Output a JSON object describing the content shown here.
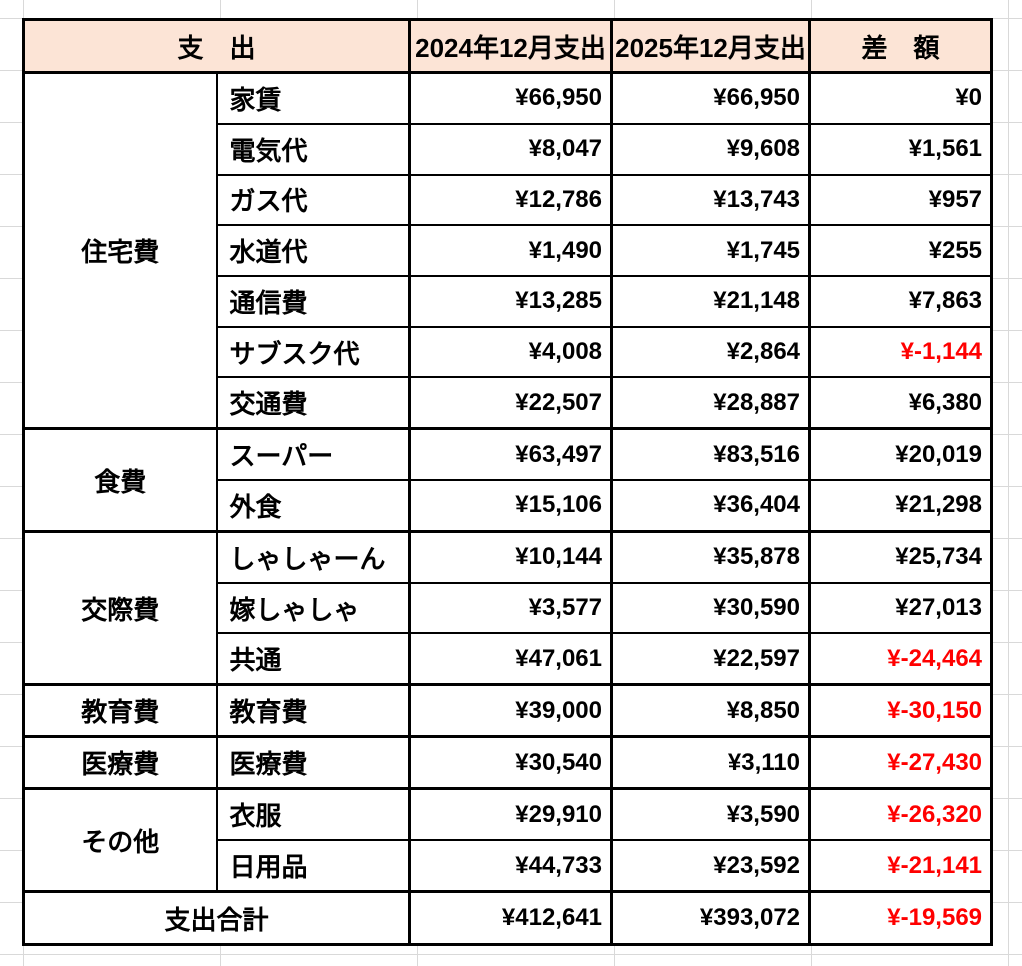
{
  "table": {
    "header": {
      "expense": "支　出",
      "y2024": "2024年12月支出",
      "y2025": "2025年12月支出",
      "diff": "差　額"
    },
    "groups": [
      {
        "category": "住宅費",
        "rows": [
          {
            "item": "家賃",
            "y2024": "¥66,950",
            "y2025": "¥66,950",
            "diff": "¥0",
            "negative": false
          },
          {
            "item": "電気代",
            "y2024": "¥8,047",
            "y2025": "¥9,608",
            "diff": "¥1,561",
            "negative": false
          },
          {
            "item": "ガス代",
            "y2024": "¥12,786",
            "y2025": "¥13,743",
            "diff": "¥957",
            "negative": false
          },
          {
            "item": "水道代",
            "y2024": "¥1,490",
            "y2025": "¥1,745",
            "diff": "¥255",
            "negative": false
          },
          {
            "item": "通信費",
            "y2024": "¥13,285",
            "y2025": "¥21,148",
            "diff": "¥7,863",
            "negative": false
          },
          {
            "item": "サブスク代",
            "y2024": "¥4,008",
            "y2025": "¥2,864",
            "diff": "¥-1,144",
            "negative": true
          },
          {
            "item": "交通費",
            "y2024": "¥22,507",
            "y2025": "¥28,887",
            "diff": "¥6,380",
            "negative": false
          }
        ]
      },
      {
        "category": "食費",
        "rows": [
          {
            "item": "スーパー",
            "y2024": "¥63,497",
            "y2025": "¥83,516",
            "diff": "¥20,019",
            "negative": false
          },
          {
            "item": "外食",
            "y2024": "¥15,106",
            "y2025": "¥36,404",
            "diff": "¥21,298",
            "negative": false
          }
        ]
      },
      {
        "category": "交際費",
        "rows": [
          {
            "item": "しゃしゃーん",
            "y2024": "¥10,144",
            "y2025": "¥35,878",
            "diff": "¥25,734",
            "negative": false
          },
          {
            "item": "嫁しゃしゃ",
            "y2024": "¥3,577",
            "y2025": "¥30,590",
            "diff": "¥27,013",
            "negative": false
          },
          {
            "item": "共通",
            "y2024": "¥47,061",
            "y2025": "¥22,597",
            "diff": "¥-24,464",
            "negative": true
          }
        ]
      },
      {
        "category": "教育費",
        "rows": [
          {
            "item": "教育費",
            "y2024": "¥39,000",
            "y2025": "¥8,850",
            "diff": "¥-30,150",
            "negative": true
          }
        ]
      },
      {
        "category": "医療費",
        "rows": [
          {
            "item": "医療費",
            "y2024": "¥30,540",
            "y2025": "¥3,110",
            "diff": "¥-27,430",
            "negative": true
          }
        ]
      },
      {
        "category": "その他",
        "rows": [
          {
            "item": "衣服",
            "y2024": "¥29,910",
            "y2025": "¥3,590",
            "diff": "¥-26,320",
            "negative": true
          },
          {
            "item": "日用品",
            "y2024": "¥44,733",
            "y2025": "¥23,592",
            "diff": "¥-21,141",
            "negative": true
          }
        ]
      }
    ],
    "total": {
      "label": "支出合計",
      "y2024": "¥412,641",
      "y2025": "¥393,072",
      "diff": "¥-19,569",
      "negative": true
    }
  },
  "colors": {
    "header_fill": "#FCE4D6",
    "border": "#000000",
    "negative_text": "#FF0000",
    "gridline": "#D9D9D9",
    "background": "#FFFFFF"
  }
}
